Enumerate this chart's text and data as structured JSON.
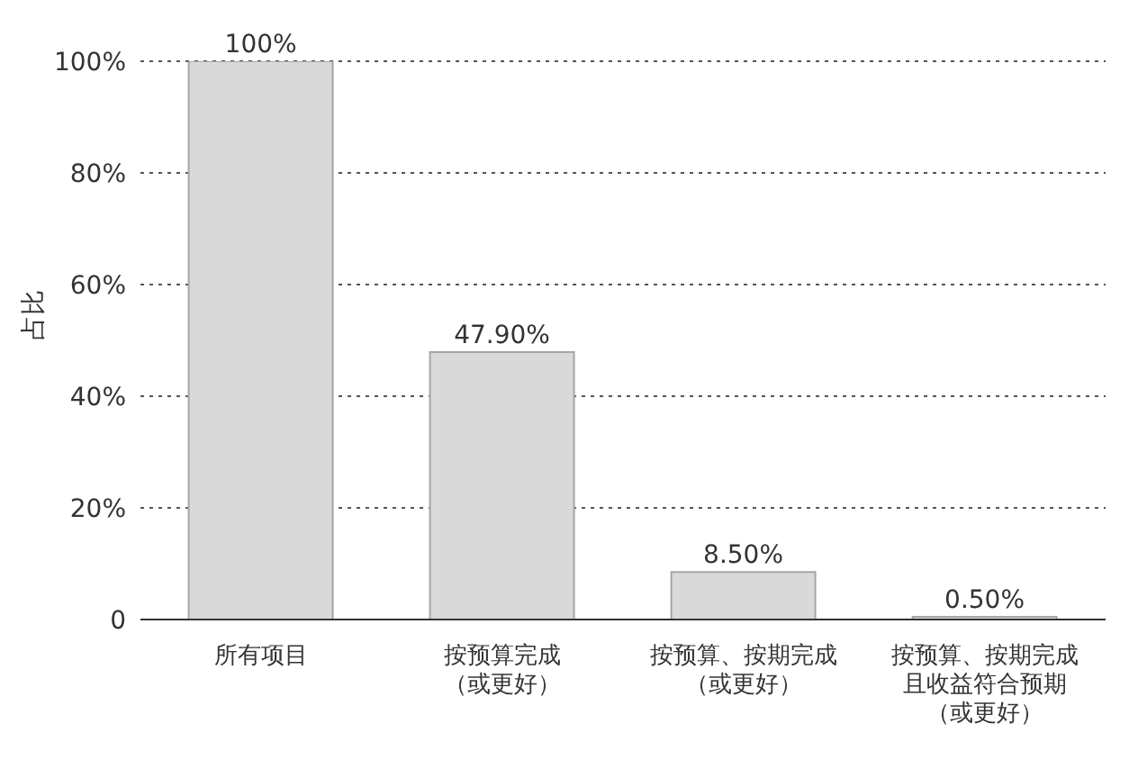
{
  "chart_data": {
    "type": "bar",
    "ylabel": "占比",
    "categories": [
      "所有项目",
      "按预算完成（或更好）",
      "按预算、按期完成（或更好）",
      "按预算、按期完成且收益符合预期（或更好）"
    ],
    "values": [
      100,
      47.9,
      8.5,
      0.5
    ],
    "value_labels": [
      "100%",
      "47.90%",
      "8.50%",
      "0.50%"
    ],
    "color": "#d9d9d9",
    "ylim": [
      0,
      100
    ],
    "yticks": [
      0,
      {
        "value": 20,
        "label": "20%"
      },
      {
        "value": 40,
        "label": "40%"
      },
      {
        "value": 60,
        "label": "60%"
      },
      {
        "value": 80,
        "label": "80%"
      },
      {
        "value": 100,
        "label": "100%"
      }
    ],
    "grid": "y",
    "legend": false
  }
}
